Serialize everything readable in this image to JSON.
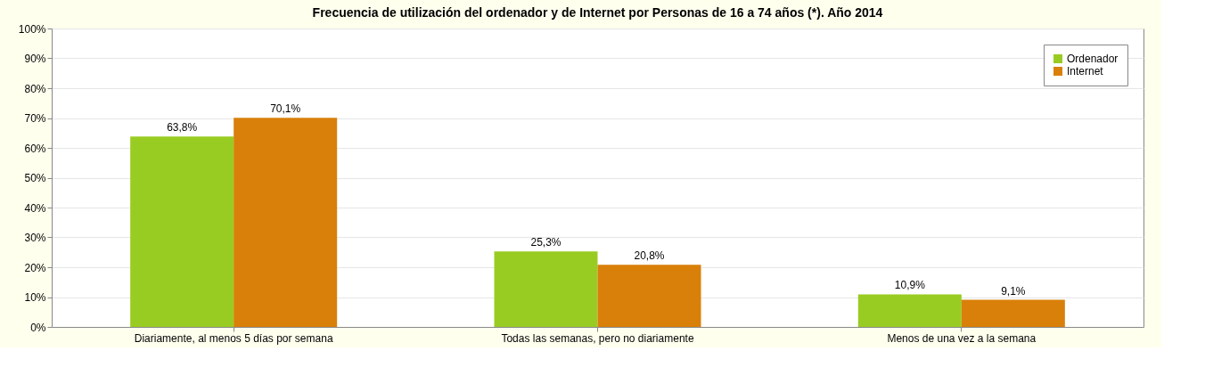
{
  "chart_data": {
    "type": "bar",
    "title": "Frecuencia de utilización del ordenador y de Internet por Personas de 16 a 74 años (*). Año 2014",
    "categories": [
      "Diariamente, al menos 5 días por semana",
      "Todas las semanas, pero no diariamente",
      "Menos de una vez a la semana"
    ],
    "series": [
      {
        "name": "Ordenador",
        "color": "#99cc22",
        "values": [
          63.8,
          25.3,
          10.9
        ],
        "value_labels": [
          "63,8%",
          "25,3%",
          "10,9%"
        ]
      },
      {
        "name": "Internet",
        "color": "#d9800a",
        "values": [
          70.1,
          20.8,
          9.1
        ],
        "value_labels": [
          "70,1%",
          "20,8%",
          "9,1%"
        ]
      }
    ],
    "ylim": [
      0,
      100
    ],
    "yticks": [
      {
        "value": 0,
        "label": "0%"
      },
      {
        "value": 10,
        "label": "10%"
      },
      {
        "value": 20,
        "label": "20%"
      },
      {
        "value": 30,
        "label": "30%"
      },
      {
        "value": 40,
        "label": "40%"
      },
      {
        "value": 50,
        "label": "50%"
      },
      {
        "value": 60,
        "label": "60%"
      },
      {
        "value": 70,
        "label": "70%"
      },
      {
        "value": 80,
        "label": "80%"
      },
      {
        "value": 90,
        "label": "90%"
      },
      {
        "value": 100,
        "label": "100%"
      }
    ],
    "grid": "y",
    "legend": "top right"
  }
}
